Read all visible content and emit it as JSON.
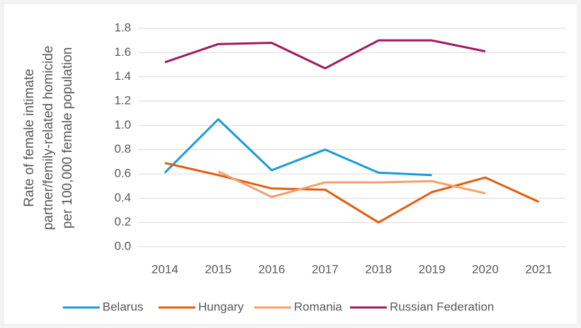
{
  "chart_data": {
    "type": "line",
    "y_label": [
      "Rate of female intimate",
      "partner/femily-related homicide",
      "per 100,000 female population"
    ],
    "categories": [
      "2014",
      "2015",
      "2016",
      "2017",
      "2018",
      "2019",
      "2020",
      "2021"
    ],
    "series": [
      {
        "name": "Belarus",
        "color": "#1a9ad6",
        "values": [
          0.61,
          1.05,
          0.63,
          0.8,
          0.61,
          0.59,
          null,
          null
        ]
      },
      {
        "name": "Hungary",
        "color": "#e35d0e",
        "values": [
          0.69,
          0.59,
          0.48,
          0.47,
          0.2,
          0.45,
          0.57,
          0.37
        ]
      },
      {
        "name": "Romania",
        "color": "#f4a06b",
        "values": [
          null,
          0.62,
          0.41,
          0.53,
          0.53,
          0.54,
          0.44,
          null
        ]
      },
      {
        "name": "Russian Federation",
        "color": "#a1195e",
        "values": [
          1.52,
          1.67,
          1.68,
          1.47,
          1.7,
          1.7,
          1.61,
          null
        ]
      }
    ],
    "ylim": [
      0,
      1.8
    ],
    "yticks": [
      {
        "value": 0,
        "label": "0.0"
      },
      0.2,
      0.4,
      0.6,
      0.8,
      {
        "value": 1,
        "label": "1.0"
      },
      1.2,
      1.4,
      1.6,
      1.8
    ],
    "grid": true,
    "legend": "bottom"
  }
}
